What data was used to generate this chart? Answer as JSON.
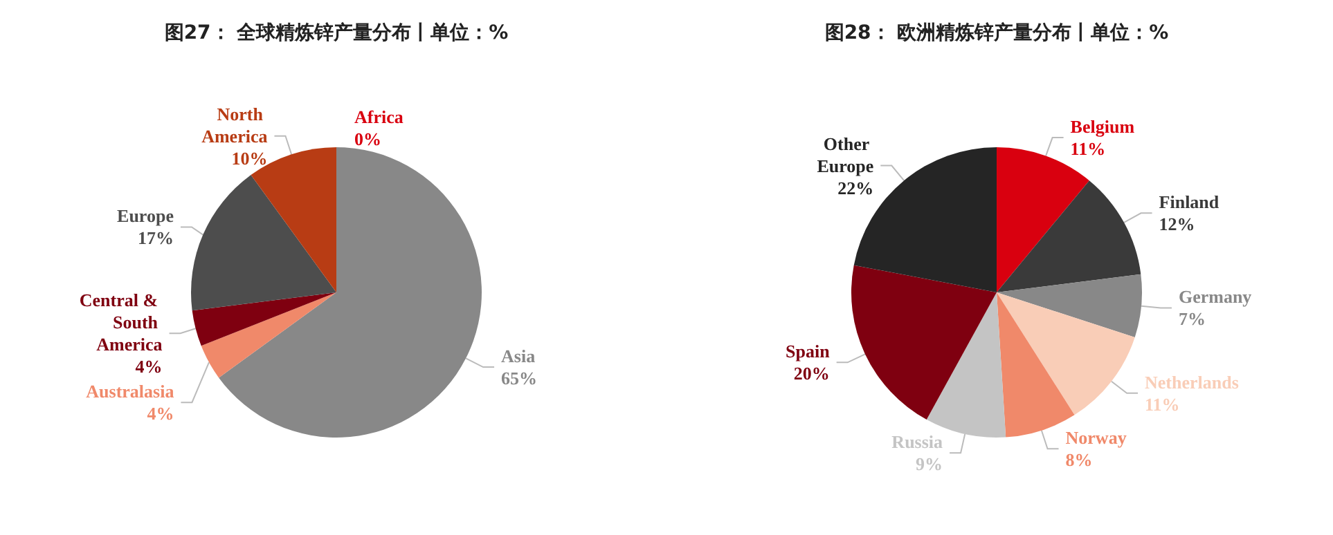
{
  "chart_data": [
    {
      "type": "pie",
      "title": "图27： 全球精炼锌产量分布丨单位：%",
      "categories": [
        "Asia",
        "Australasia",
        "Central & South America",
        "Europe",
        "North America",
        "Africa"
      ],
      "values": [
        65,
        4,
        4,
        17,
        10,
        0
      ],
      "value_labels": [
        "65%",
        "4%",
        "4%",
        "17%",
        "10%",
        "0%"
      ],
      "colors": [
        "#888888",
        "#f0896a",
        "#7f0010",
        "#4d4d4d",
        "#b83c14",
        "#d9000f"
      ]
    },
    {
      "type": "pie",
      "title": "图28： 欧洲精炼锌产量分布丨单位：%",
      "categories": [
        "Belgium",
        "Finland",
        "Germany",
        "Netherlands",
        "Norway",
        "Russia",
        "Spain",
        "Other Europe"
      ],
      "values": [
        11,
        12,
        7,
        11,
        8,
        9,
        20,
        22
      ],
      "value_labels": [
        "11%",
        "12%",
        "7%",
        "11%",
        "8%",
        "9%",
        "20%",
        "22%"
      ],
      "colors": [
        "#d9000f",
        "#3a3a3a",
        "#888888",
        "#f9cdb7",
        "#f0896a",
        "#c4c4c4",
        "#7f0010",
        "#252525"
      ]
    }
  ]
}
